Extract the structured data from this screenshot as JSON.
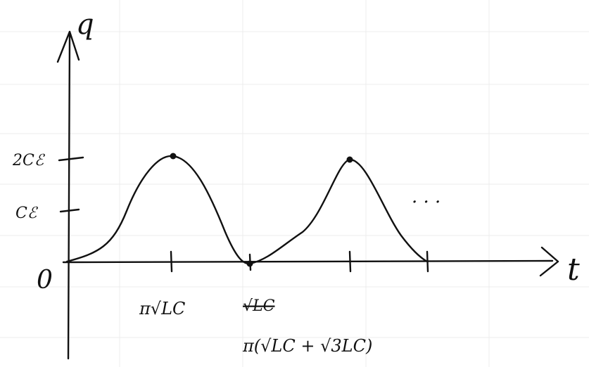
{
  "axes": {
    "y_label": "q",
    "x_label": "t",
    "origin": "0"
  },
  "y_ticks": [
    "2Cℰ",
    "Cℰ"
  ],
  "x_ticks": [
    "π√LC",
    "√LC",
    "π(√LC + √3LC)"
  ],
  "continuation": "· · ·"
}
